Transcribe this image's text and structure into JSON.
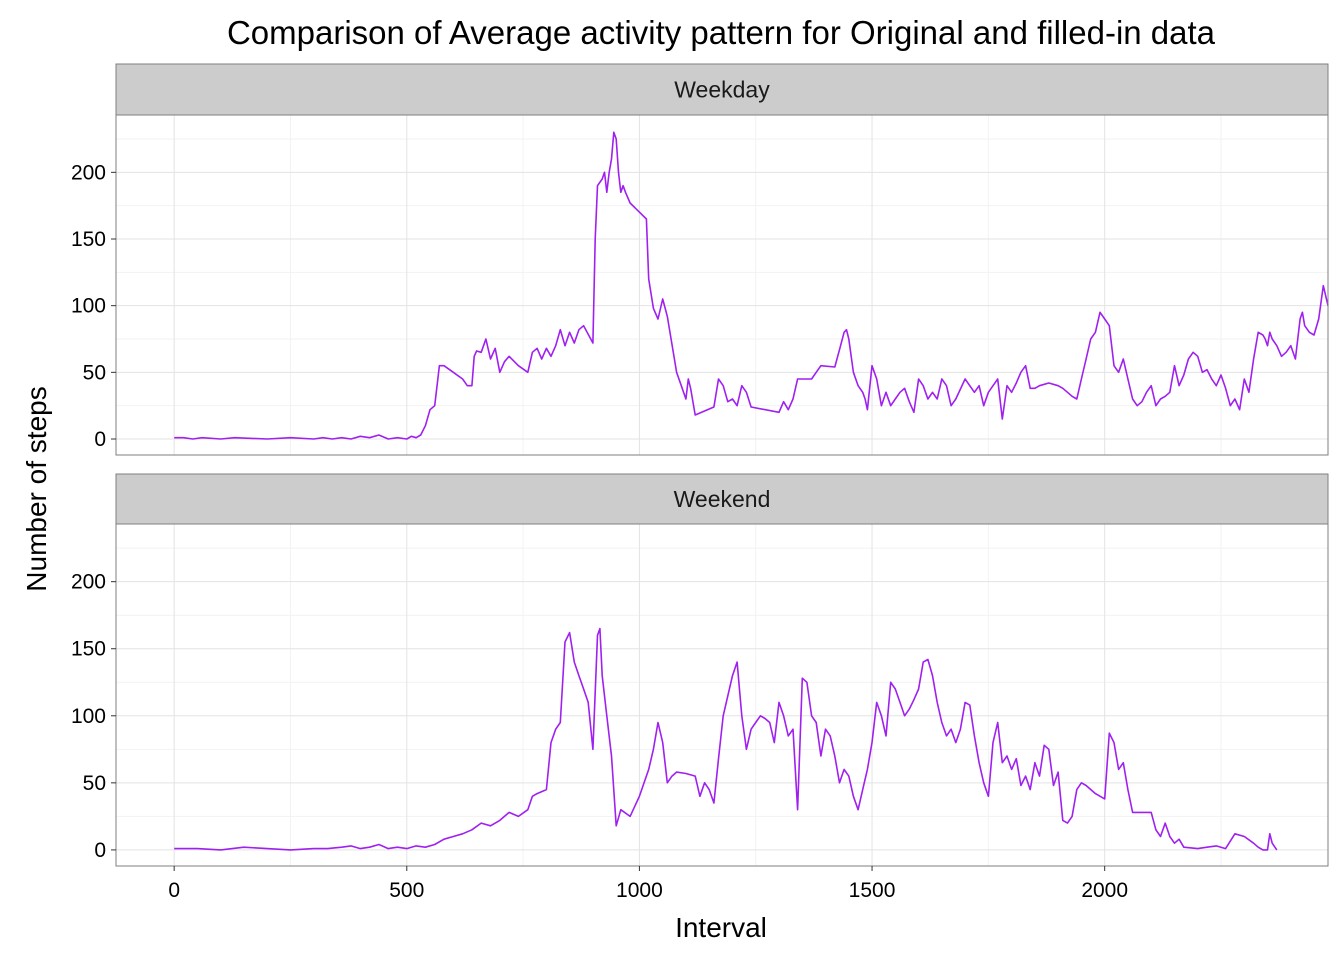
{
  "chart_data": {
    "type": "line",
    "title": "Comparison of Average activity pattern for Original and filled-in data",
    "xlabel": "Interval",
    "ylabel": "Number of steps",
    "xlim": [
      -125,
      2480
    ],
    "ylim": [
      -12,
      243
    ],
    "x_ticks": [
      0,
      500,
      1000,
      1500,
      2000
    ],
    "y_ticks": [
      0,
      50,
      100,
      150,
      200
    ],
    "grid": true,
    "line_color": "#A020F0",
    "panels": [
      {
        "label": "Weekday",
        "points": [
          [
            0,
            1
          ],
          [
            20,
            1
          ],
          [
            40,
            0
          ],
          [
            60,
            1
          ],
          [
            100,
            0
          ],
          [
            130,
            1
          ],
          [
            200,
            0
          ],
          [
            250,
            1
          ],
          [
            300,
            0
          ],
          [
            320,
            1
          ],
          [
            340,
            0
          ],
          [
            360,
            1
          ],
          [
            380,
            0
          ],
          [
            400,
            2
          ],
          [
            420,
            1
          ],
          [
            440,
            3
          ],
          [
            460,
            0
          ],
          [
            480,
            1
          ],
          [
            500,
            0
          ],
          [
            510,
            2
          ],
          [
            520,
            1
          ],
          [
            530,
            3
          ],
          [
            540,
            10
          ],
          [
            550,
            22
          ],
          [
            560,
            25
          ],
          [
            570,
            55
          ],
          [
            580,
            55
          ],
          [
            600,
            50
          ],
          [
            620,
            45
          ],
          [
            630,
            40
          ],
          [
            640,
            40
          ],
          [
            645,
            62
          ],
          [
            650,
            66
          ],
          [
            660,
            65
          ],
          [
            670,
            75
          ],
          [
            680,
            60
          ],
          [
            690,
            68
          ],
          [
            700,
            50
          ],
          [
            710,
            58
          ],
          [
            720,
            62
          ],
          [
            740,
            55
          ],
          [
            760,
            50
          ],
          [
            770,
            65
          ],
          [
            780,
            68
          ],
          [
            790,
            60
          ],
          [
            800,
            68
          ],
          [
            810,
            62
          ],
          [
            820,
            70
          ],
          [
            830,
            82
          ],
          [
            840,
            70
          ],
          [
            850,
            80
          ],
          [
            860,
            72
          ],
          [
            870,
            82
          ],
          [
            880,
            85
          ],
          [
            900,
            72
          ],
          [
            905,
            150
          ],
          [
            910,
            190
          ],
          [
            920,
            195
          ],
          [
            925,
            200
          ],
          [
            930,
            185
          ],
          [
            935,
            200
          ],
          [
            940,
            210
          ],
          [
            945,
            230
          ],
          [
            950,
            225
          ],
          [
            955,
            200
          ],
          [
            960,
            185
          ],
          [
            965,
            190
          ],
          [
            970,
            185
          ],
          [
            980,
            177
          ],
          [
            1015,
            165
          ],
          [
            1020,
            120
          ],
          [
            1030,
            98
          ],
          [
            1040,
            90
          ],
          [
            1050,
            105
          ],
          [
            1060,
            92
          ],
          [
            1080,
            50
          ],
          [
            1090,
            40
          ],
          [
            1100,
            30
          ],
          [
            1105,
            45
          ],
          [
            1110,
            38
          ],
          [
            1120,
            18
          ],
          [
            1160,
            24
          ],
          [
            1170,
            45
          ],
          [
            1180,
            40
          ],
          [
            1190,
            28
          ],
          [
            1200,
            30
          ],
          [
            1210,
            25
          ],
          [
            1220,
            40
          ],
          [
            1230,
            35
          ],
          [
            1240,
            24
          ],
          [
            1300,
            20
          ],
          [
            1310,
            28
          ],
          [
            1320,
            22
          ],
          [
            1330,
            30
          ],
          [
            1340,
            45
          ],
          [
            1360,
            45
          ],
          [
            1370,
            45
          ],
          [
            1380,
            50
          ],
          [
            1390,
            55
          ],
          [
            1420,
            54
          ],
          [
            1430,
            67
          ],
          [
            1440,
            80
          ],
          [
            1445,
            82
          ],
          [
            1450,
            75
          ],
          [
            1460,
            50
          ],
          [
            1470,
            40
          ],
          [
            1480,
            35
          ],
          [
            1485,
            30
          ],
          [
            1490,
            22
          ],
          [
            1500,
            55
          ],
          [
            1510,
            45
          ],
          [
            1520,
            25
          ],
          [
            1530,
            35
          ],
          [
            1540,
            25
          ],
          [
            1550,
            30
          ],
          [
            1560,
            35
          ],
          [
            1570,
            38
          ],
          [
            1580,
            28
          ],
          [
            1590,
            20
          ],
          [
            1600,
            45
          ],
          [
            1610,
            40
          ],
          [
            1620,
            30
          ],
          [
            1630,
            35
          ],
          [
            1640,
            30
          ],
          [
            1650,
            45
          ],
          [
            1660,
            40
          ],
          [
            1670,
            25
          ],
          [
            1680,
            30
          ],
          [
            1700,
            45
          ],
          [
            1720,
            35
          ],
          [
            1730,
            40
          ],
          [
            1740,
            25
          ],
          [
            1750,
            35
          ],
          [
            1760,
            40
          ],
          [
            1770,
            45
          ],
          [
            1780,
            15
          ],
          [
            1790,
            40
          ],
          [
            1800,
            35
          ],
          [
            1810,
            42
          ],
          [
            1820,
            50
          ],
          [
            1830,
            55
          ],
          [
            1840,
            38
          ],
          [
            1850,
            38
          ],
          [
            1860,
            40
          ],
          [
            1880,
            42
          ],
          [
            1900,
            40
          ],
          [
            1910,
            38
          ],
          [
            1920,
            35
          ],
          [
            1930,
            32
          ],
          [
            1940,
            30
          ],
          [
            1950,
            45
          ],
          [
            1960,
            60
          ],
          [
            1970,
            75
          ],
          [
            1980,
            80
          ],
          [
            1990,
            95
          ],
          [
            2000,
            90
          ],
          [
            2010,
            85
          ],
          [
            2020,
            55
          ],
          [
            2030,
            50
          ],
          [
            2040,
            60
          ],
          [
            2050,
            45
          ],
          [
            2060,
            30
          ],
          [
            2070,
            25
          ],
          [
            2080,
            28
          ],
          [
            2090,
            35
          ],
          [
            2100,
            40
          ],
          [
            2110,
            25
          ],
          [
            2120,
            30
          ],
          [
            2130,
            32
          ],
          [
            2140,
            35
          ],
          [
            2150,
            55
          ],
          [
            2160,
            40
          ],
          [
            2170,
            48
          ],
          [
            2180,
            60
          ],
          [
            2190,
            65
          ],
          [
            2200,
            62
          ],
          [
            2210,
            50
          ],
          [
            2220,
            52
          ],
          [
            2230,
            45
          ],
          [
            2240,
            40
          ],
          [
            2250,
            48
          ],
          [
            2260,
            38
          ],
          [
            2270,
            25
          ],
          [
            2280,
            30
          ],
          [
            2290,
            22
          ],
          [
            2300,
            45
          ],
          [
            2310,
            35
          ],
          [
            2320,
            60
          ],
          [
            2330,
            80
          ],
          [
            2340,
            78
          ],
          [
            2345,
            75
          ],
          [
            2350,
            70
          ],
          [
            2355,
            80
          ],
          [
            2360,
            75
          ],
          [
            2370,
            70
          ],
          [
            2380,
            62
          ],
          [
            2390,
            65
          ],
          [
            2400,
            70
          ],
          [
            2410,
            60
          ],
          [
            2420,
            90
          ],
          [
            2425,
            95
          ],
          [
            2430,
            85
          ],
          [
            2440,
            80
          ],
          [
            2450,
            78
          ],
          [
            2460,
            90
          ],
          [
            2470,
            115
          ],
          [
            2480,
            100
          ]
        ]
      },
      {
        "label": "Weekend",
        "points": []
      }
    ]
  }
}
